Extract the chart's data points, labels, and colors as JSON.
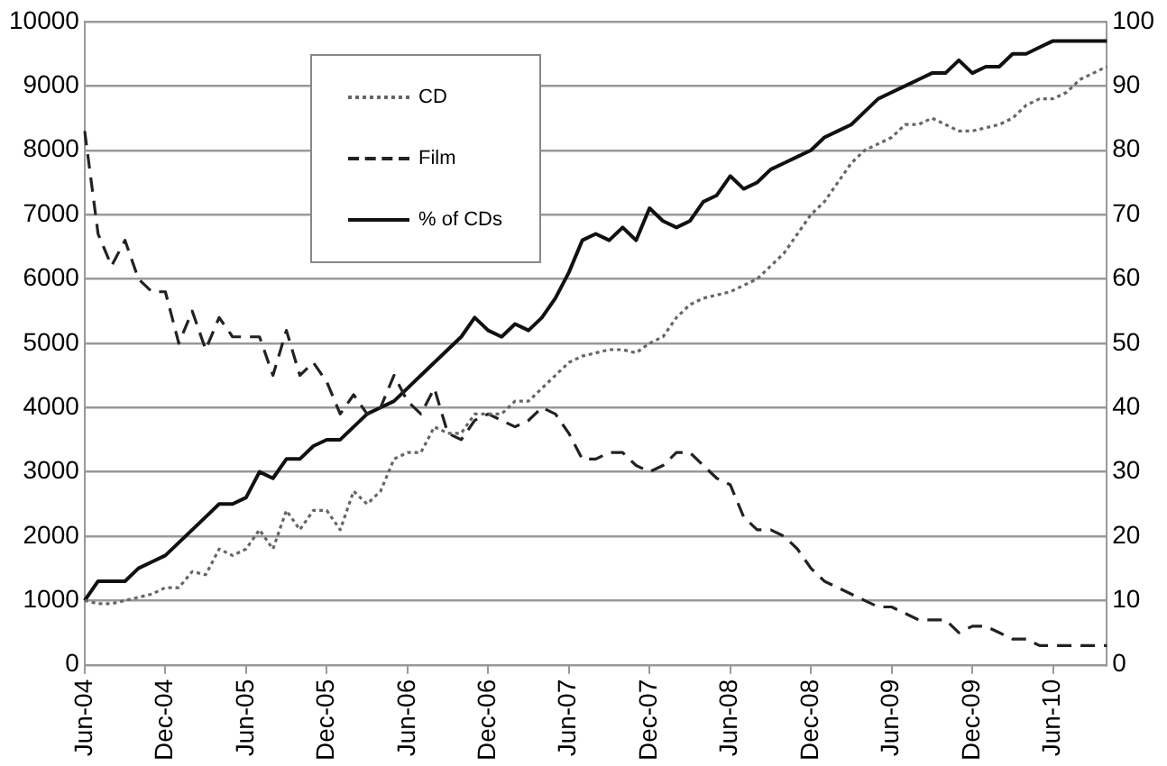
{
  "chart_data": {
    "type": "line",
    "categories": [
      "Jun-04",
      null,
      null,
      null,
      null,
      null,
      "Dec-04",
      null,
      null,
      null,
      null,
      null,
      "Jun-05",
      null,
      null,
      null,
      null,
      null,
      "Dec-05",
      null,
      null,
      null,
      null,
      null,
      "Jun-06",
      null,
      null,
      null,
      null,
      null,
      "Dec-06",
      null,
      null,
      null,
      null,
      null,
      "Jun-07",
      null,
      null,
      null,
      null,
      null,
      "Dec-07",
      null,
      null,
      null,
      null,
      null,
      "Jun-08",
      null,
      null,
      null,
      null,
      null,
      "Dec-08",
      null,
      null,
      null,
      null,
      null,
      "Jun-09",
      null,
      null,
      null,
      null,
      null,
      "Dec-09",
      null,
      null,
      null,
      null,
      null,
      "Jun-10",
      null,
      null,
      null,
      null
    ],
    "series": [
      {
        "name": "CD",
        "color": "#666666",
        "line_style": "dotted",
        "values": [
          1000,
          950,
          950,
          1000,
          1050,
          1100,
          1200,
          1200,
          1450,
          1400,
          1800,
          1700,
          1800,
          2100,
          1800,
          2400,
          2100,
          2400,
          2400,
          2100,
          2700,
          2500,
          2700,
          3200,
          3300,
          3300,
          3700,
          3600,
          3600,
          3900,
          3900,
          3900,
          4100,
          4100,
          4300,
          4500,
          4700,
          4800,
          4850,
          4900,
          4900,
          4850,
          5000,
          5100,
          5400,
          5600,
          5700,
          5750,
          5800,
          5900,
          6000,
          6200,
          6400,
          6700,
          7000,
          7200,
          7500,
          7800,
          8000,
          8100,
          8200,
          8400,
          8400,
          8500,
          8400,
          8300,
          8300,
          8350,
          8400,
          8500,
          8700,
          8800,
          8800,
          8900,
          9100,
          9200,
          9300
        ]
      },
      {
        "name": "Film",
        "color": "#222222",
        "line_style": "dashed",
        "values": [
          8300,
          6700,
          6200,
          6600,
          6000,
          5800,
          5800,
          5000,
          5500,
          4900,
          5400,
          5100,
          5100,
          5100,
          4500,
          5200,
          4500,
          4700,
          4400,
          3900,
          4200,
          3900,
          4000,
          4500,
          4100,
          3900,
          4300,
          3600,
          3500,
          3800,
          3900,
          3800,
          3700,
          3800,
          4000,
          3900,
          3600,
          3200,
          3200,
          3300,
          3300,
          3100,
          3000,
          3100,
          3300,
          3300,
          3100,
          2900,
          2800,
          2300,
          2100,
          2100,
          2000,
          1800,
          1500,
          1300,
          1200,
          1100,
          1000,
          900,
          900,
          800,
          700,
          700,
          700,
          500,
          600,
          600,
          500,
          400,
          400,
          300,
          300,
          300,
          300,
          300,
          300
        ]
      },
      {
        "name": "% of CDs",
        "color": "#111111",
        "line_style": "solid",
        "axis": "y2",
        "values": [
          10,
          13,
          13,
          13,
          15,
          16,
          17,
          19,
          21,
          23,
          25,
          25,
          26,
          30,
          29,
          32,
          32,
          34,
          35,
          35,
          37,
          39,
          40,
          41,
          43,
          45,
          47,
          49,
          51,
          54,
          52,
          51,
          53,
          52,
          54,
          57,
          61,
          66,
          67,
          66,
          68,
          66,
          71,
          69,
          68,
          69,
          72,
          73,
          76,
          74,
          75,
          77,
          78,
          79,
          80,
          82,
          83,
          84,
          86,
          88,
          89,
          90,
          91,
          92,
          92,
          94,
          92,
          93,
          93,
          95,
          95,
          96,
          97,
          97,
          97,
          97,
          97
        ]
      }
    ],
    "ylim": [
      0,
      10000
    ],
    "yticks": [
      0,
      1000,
      2000,
      3000,
      4000,
      5000,
      6000,
      7000,
      8000,
      9000,
      10000
    ],
    "y2lim": [
      0,
      100
    ],
    "y2ticks": [
      0,
      10,
      20,
      30,
      40,
      50,
      60,
      70,
      80,
      90,
      100
    ],
    "grid": "y",
    "legend": "top left",
    "marker": "none"
  }
}
